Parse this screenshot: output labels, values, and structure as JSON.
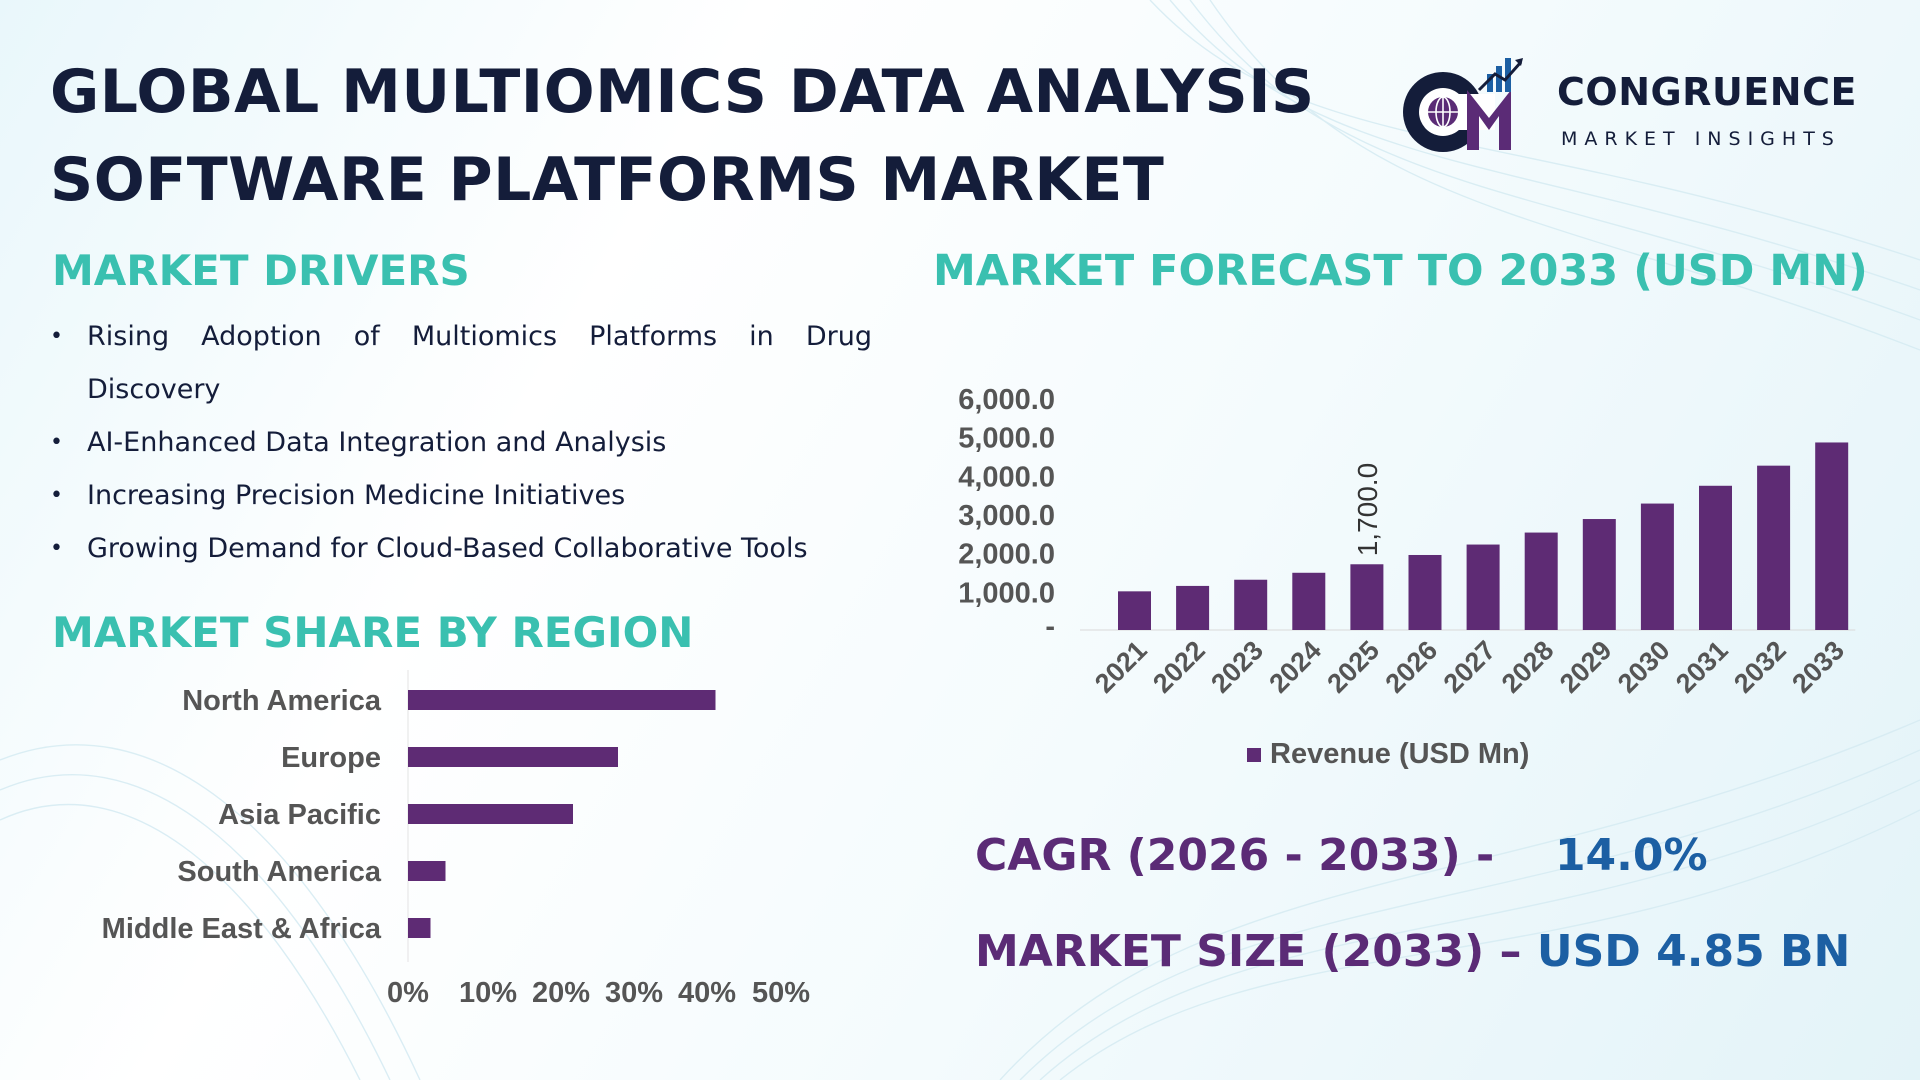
{
  "title": {
    "line1": "GLOBAL MULTIOMICS DATA ANALYSIS",
    "line2": "SOFTWARE PLATFORMS MARKET"
  },
  "logo": {
    "name": "CONGRUENCE",
    "tagline": "MARKET INSIGHTS"
  },
  "drivers": {
    "heading": "MARKET DRIVERS",
    "items": [
      "Rising Adoption of Multiomics Platforms in Drug Discovery",
      "AI-Enhanced Data Integration and Analysis",
      "Increasing Precision Medicine Initiatives",
      "Growing Demand for Cloud-Based Collaborative Tools"
    ]
  },
  "region": {
    "heading": "MARKET SHARE BY REGION"
  },
  "forecast": {
    "heading": "MARKET FORECAST TO 2033 (USD MN)"
  },
  "kpis": {
    "cagr_label": "CAGR (2026 - 2033) -",
    "cagr_value": "14.0%",
    "size_label": "MARKET SIZE (2033) –",
    "size_value": "USD 4.85 BN"
  },
  "colors": {
    "bar": "#5e2b74",
    "heading": "#3ac0b0",
    "title": "#141d3a",
    "kpi_label": "#5b2b76",
    "kpi_value": "#1c5fa3",
    "axis_text": "#555555"
  },
  "chart_data": [
    {
      "type": "bar",
      "orientation": "horizontal",
      "categories": [
        "North America",
        "Europe",
        "Asia Pacific",
        "South America",
        "Middle East & Africa"
      ],
      "values": [
        41,
        28,
        22,
        5,
        3
      ],
      "xlim": [
        0,
        50
      ],
      "ticks": [
        "0%",
        "10%",
        "20%",
        "30%",
        "40%",
        "50%"
      ],
      "grid": false
    },
    {
      "type": "bar",
      "categories": [
        "2021",
        "2022",
        "2023",
        "2024",
        "2025",
        "2026",
        "2027",
        "2028",
        "2029",
        "2030",
        "2031",
        "2032",
        "2033"
      ],
      "series": [
        {
          "name": "Revenue (USD Mn)",
          "values": [
            1000,
            1140,
            1300,
            1480,
            1700,
            1940,
            2210,
            2520,
            2870,
            3270,
            3730,
            4250,
            4850
          ]
        }
      ],
      "ylim": [
        0,
        6000
      ],
      "yticks": [
        "-",
        "1,000.0",
        "2,000.0",
        "3,000.0",
        "4,000.0",
        "5,000.0",
        "6,000.0"
      ],
      "data_labels": [
        {
          "category": "2025",
          "text": "1,700.0"
        }
      ],
      "legend": "bottom",
      "grid": false
    }
  ]
}
